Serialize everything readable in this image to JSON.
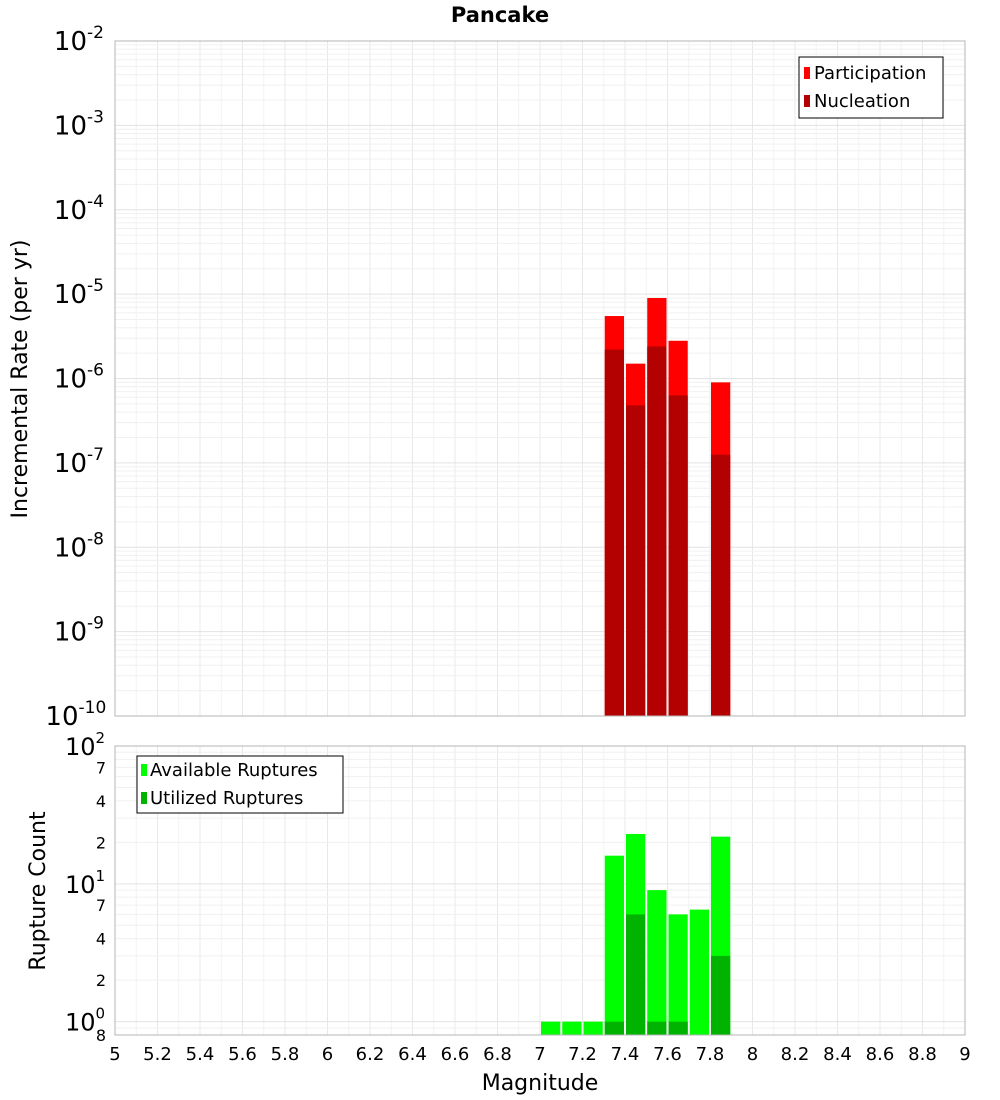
{
  "chart_data": [
    {
      "type": "bar",
      "title": "Pancake",
      "ylabel": "Incremental Rate (per yr)",
      "xlabel": "",
      "yscale": "log",
      "ylim": [
        1e-10,
        0.01
      ],
      "xlim": [
        5,
        9
      ],
      "bin_width": 0.1,
      "y_ticks": [
        {
          "mantissa": "10",
          "exp": "-10"
        },
        {
          "mantissa": "10",
          "exp": "-9"
        },
        {
          "mantissa": "10",
          "exp": "-8"
        },
        {
          "mantissa": "10",
          "exp": "-7"
        },
        {
          "mantissa": "10",
          "exp": "-6"
        },
        {
          "mantissa": "10",
          "exp": "-5"
        },
        {
          "mantissa": "10",
          "exp": "-4"
        },
        {
          "mantissa": "10",
          "exp": "-3"
        },
        {
          "mantissa": "10",
          "exp": "-2"
        }
      ],
      "legend_position": "top-right",
      "series": [
        {
          "name": "Participation",
          "color": "#ff0000",
          "x": [
            7.35,
            7.45,
            7.55,
            7.65,
            7.85
          ],
          "values": [
            5.5e-06,
            1.5e-06,
            9e-06,
            2.8e-06,
            9e-07
          ]
        },
        {
          "name": "Nucleation",
          "color": "#b30000",
          "x": [
            7.35,
            7.45,
            7.55,
            7.65,
            7.85
          ],
          "values": [
            2.2e-06,
            4.8e-07,
            2.4e-06,
            6.3e-07,
            1.25e-07
          ]
        }
      ]
    },
    {
      "type": "bar",
      "title": "",
      "ylabel": "Rupture Count",
      "xlabel": "Magnitude",
      "yscale": "log",
      "ylim": [
        0.8,
        100
      ],
      "xlim": [
        5,
        9
      ],
      "bin_width": 0.1,
      "x_ticks": [
        "5",
        "5.2",
        "5.4",
        "5.6",
        "5.8",
        "6",
        "6.2",
        "6.4",
        "6.6",
        "6.8",
        "7",
        "7.2",
        "7.4",
        "7.6",
        "7.8",
        "8",
        "8.2",
        "8.4",
        "8.6",
        "8.8",
        "9"
      ],
      "y_ticks": [
        {
          "value": 0.8,
          "mantissa": "8",
          "exp": ""
        },
        {
          "value": 1,
          "mantissa": "10",
          "exp": "0"
        },
        {
          "value": 2,
          "mantissa": "2",
          "exp": ""
        },
        {
          "value": 4,
          "mantissa": "4",
          "exp": ""
        },
        {
          "value": 7,
          "mantissa": "7",
          "exp": ""
        },
        {
          "value": 10,
          "mantissa": "10",
          "exp": "1"
        },
        {
          "value": 20,
          "mantissa": "2",
          "exp": ""
        },
        {
          "value": 40,
          "mantissa": "4",
          "exp": ""
        },
        {
          "value": 70,
          "mantissa": "7",
          "exp": ""
        },
        {
          "value": 100,
          "mantissa": "10",
          "exp": "2"
        }
      ],
      "legend_position": "top-left",
      "series": [
        {
          "name": "Available Ruptures",
          "color": "#00ff00",
          "x": [
            7.05,
            7.15,
            7.25,
            7.35,
            7.45,
            7.55,
            7.65,
            7.75,
            7.85
          ],
          "values": [
            1,
            1,
            1,
            16,
            23,
            9,
            6,
            6.5,
            22
          ]
        },
        {
          "name": "Utilized Ruptures",
          "color": "#00b300",
          "x": [
            7.35,
            7.45,
            7.55,
            7.65,
            7.85
          ],
          "values": [
            1,
            6,
            1,
            1,
            3
          ]
        }
      ]
    }
  ]
}
